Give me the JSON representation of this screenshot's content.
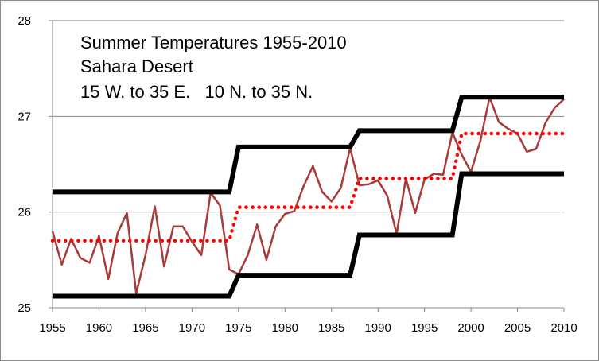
{
  "chart_data": {
    "type": "line",
    "title_lines": [
      "Summer Temperatures 1955-2010",
      "Sahara Desert",
      "15 W. to 35 E.   10 N. to 35 N."
    ],
    "xlabel": "",
    "ylabel": "",
    "xlim": [
      1955,
      2010
    ],
    "ylim": [
      25,
      28
    ],
    "x_ticks": [
      1955,
      1960,
      1965,
      1970,
      1975,
      1980,
      1985,
      1990,
      1995,
      2000,
      2005,
      2010
    ],
    "y_ticks": [
      25,
      26,
      27,
      28
    ],
    "grid": "horizontal",
    "legend": "none",
    "colors": {
      "temperature": "#a83a3a",
      "mean": "#ff0000",
      "bounds": "#000000",
      "grid": "#888888"
    },
    "series": [
      {
        "key": "temperature",
        "style": "thin-line",
        "x": [
          1955,
          1956,
          1957,
          1958,
          1959,
          1960,
          1961,
          1962,
          1963,
          1964,
          1965,
          1966,
          1967,
          1968,
          1969,
          1970,
          1971,
          1972,
          1973,
          1974,
          1975,
          1976,
          1977,
          1978,
          1979,
          1980,
          1981,
          1982,
          1983,
          1984,
          1985,
          1986,
          1987,
          1988,
          1989,
          1990,
          1991,
          1992,
          1993,
          1994,
          1995,
          1996,
          1997,
          1998,
          1999,
          2000,
          2001,
          2002,
          2003,
          2004,
          2005,
          2006,
          2007,
          2008,
          2009,
          2010
        ],
        "y": [
          25.8,
          25.45,
          25.72,
          25.52,
          25.47,
          25.75,
          25.3,
          25.78,
          25.99,
          25.15,
          25.55,
          26.06,
          25.43,
          25.85,
          25.85,
          25.69,
          25.55,
          26.2,
          26.07,
          25.4,
          25.35,
          25.55,
          25.87,
          25.5,
          25.85,
          25.98,
          26.01,
          26.27,
          26.48,
          26.21,
          26.11,
          26.25,
          26.67,
          26.28,
          26.29,
          26.33,
          26.17,
          25.77,
          26.35,
          25.99,
          26.34,
          26.4,
          26.39,
          26.83,
          26.6,
          26.42,
          26.74,
          27.2,
          26.94,
          26.87,
          26.82,
          26.63,
          26.66,
          26.93,
          27.09,
          27.18
        ]
      },
      {
        "key": "mean",
        "style": "dotted-step",
        "points": [
          [
            1955,
            25.7
          ],
          [
            1974,
            25.7
          ],
          [
            1975,
            26.05
          ],
          [
            1987,
            26.05
          ],
          [
            1988,
            26.35
          ],
          [
            1998,
            26.35
          ],
          [
            1999,
            26.82
          ],
          [
            2010,
            26.82
          ]
        ]
      },
      {
        "key": "upper_bound",
        "style": "thick-step",
        "points": [
          [
            1955,
            26.21
          ],
          [
            1974,
            26.21
          ],
          [
            1975,
            26.68
          ],
          [
            1987,
            26.68
          ],
          [
            1988,
            26.85
          ],
          [
            1998,
            26.85
          ],
          [
            1999,
            27.2
          ],
          [
            2010,
            27.2
          ]
        ]
      },
      {
        "key": "lower_bound",
        "style": "thick-step",
        "points": [
          [
            1955,
            25.12
          ],
          [
            1974,
            25.12
          ],
          [
            1975,
            25.34
          ],
          [
            1987,
            25.34
          ],
          [
            1988,
            25.76
          ],
          [
            1998,
            25.76
          ],
          [
            1999,
            26.4
          ],
          [
            2010,
            26.4
          ]
        ]
      }
    ]
  }
}
